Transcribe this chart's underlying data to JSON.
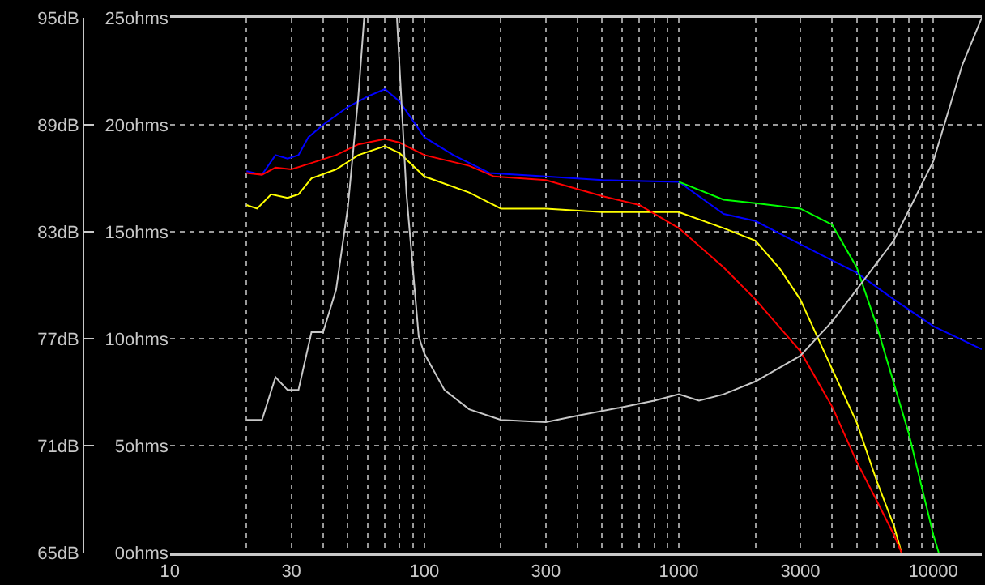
{
  "chart_data": {
    "type": "line",
    "log": "x",
    "grid": true,
    "marker": "none",
    "line_style": "solid",
    "xlim": [
      10,
      15500
    ],
    "xticks": [
      10,
      {
        "value": 20,
        "label": null
      },
      30,
      {
        "value": 40,
        "label": null
      },
      {
        "value": 50,
        "label": null
      },
      {
        "value": 60,
        "label": null
      },
      {
        "value": 70,
        "label": null
      },
      {
        "value": 80,
        "label": null
      },
      {
        "value": 90,
        "label": null
      },
      100,
      {
        "value": 200,
        "label": null
      },
      300,
      {
        "value": 400,
        "label": null
      },
      {
        "value": 500,
        "label": null
      },
      {
        "value": 600,
        "label": null
      },
      {
        "value": 700,
        "label": null
      },
      {
        "value": 800,
        "label": null
      },
      {
        "value": 900,
        "label": null
      },
      1000,
      {
        "value": 2000,
        "label": null
      },
      3000,
      {
        "value": 4000,
        "label": null
      },
      {
        "value": 5000,
        "label": null
      },
      {
        "value": 6000,
        "label": null
      },
      {
        "value": 7000,
        "label": null
      },
      {
        "value": 8000,
        "label": null
      },
      {
        "value": 9000,
        "label": null
      },
      10000
    ],
    "ylim": [
      65,
      95
    ],
    "yticks": [
      {
        "value": 65,
        "label": "65dB"
      },
      {
        "value": 71,
        "label": "71dB"
      },
      {
        "value": 77,
        "label": "77dB"
      },
      {
        "value": 83,
        "label": "83dB"
      },
      {
        "value": 89,
        "label": "89dB"
      },
      {
        "value": 95,
        "label": "95dB"
      }
    ],
    "y2lim": [
      0,
      25
    ],
    "y2ticks": [
      {
        "value": 0,
        "label": "0ohms"
      },
      {
        "value": 5,
        "label": "5ohms"
      },
      {
        "value": 10,
        "label": "10ohms"
      },
      {
        "value": 15,
        "label": "15ohms"
      },
      {
        "value": 20,
        "label": "20ohms"
      },
      {
        "value": 25,
        "label": "25ohms"
      }
    ],
    "series": [
      {
        "color": "#c8c8c8",
        "axis": "y2",
        "x": [
          20,
          23,
          26,
          29,
          32,
          36,
          40,
          45,
          50,
          55,
          58,
          68,
          78,
          85,
          95,
          100,
          120,
          150,
          200,
          300,
          400,
          600,
          800,
          1000,
          1200,
          1500,
          2000,
          3000,
          4000,
          5000,
          7000,
          10000,
          13000,
          15500
        ],
        "values": [
          6.2,
          6.2,
          8.2,
          7.6,
          7.6,
          10.3,
          10.3,
          12.3,
          16.1,
          21.3,
          25,
          null,
          25,
          16.8,
          10.1,
          9.3,
          7.6,
          6.7,
          6.2,
          6.1,
          6.4,
          6.8,
          7.1,
          7.4,
          7.1,
          7.4,
          8.0,
          9.2,
          10.8,
          12.3,
          14.6,
          18.3,
          22.8,
          25
        ]
      },
      {
        "color": "#0000ff",
        "x": [
          20,
          23,
          26,
          29,
          32,
          35,
          40,
          50,
          60,
          70,
          80,
          100,
          130,
          180,
          300,
          500,
          1000,
          1500,
          2000,
          3000,
          5000,
          7000,
          10000,
          15500
        ],
        "values": [
          86.4,
          86.2,
          87.3,
          87.1,
          87.3,
          88.3,
          89.0,
          90.0,
          90.6,
          91.0,
          90.3,
          88.3,
          87.3,
          86.3,
          86.1,
          85.9,
          85.8,
          84.0,
          83.6,
          82.3,
          80.7,
          79.2,
          77.7,
          76.4
        ]
      },
      {
        "color": "#00ff00",
        "x": [
          1000,
          1500,
          2000,
          3000,
          4000,
          5000,
          6000,
          8000,
          10000,
          10500
        ],
        "values": [
          85.8,
          84.8,
          84.6,
          84.3,
          83.4,
          81.0,
          77.7,
          71.7,
          66.0,
          65.0
        ]
      },
      {
        "color": "#ffff00",
        "x": [
          20,
          22,
          25,
          29,
          32,
          36,
          45,
          55,
          70,
          80,
          100,
          150,
          200,
          300,
          500,
          1000,
          1500,
          2000,
          2500,
          3000,
          4000,
          5000,
          6000,
          7000,
          7500
        ],
        "values": [
          84.5,
          84.3,
          85.1,
          84.9,
          85.1,
          86.0,
          86.5,
          87.3,
          87.8,
          87.4,
          86.1,
          85.2,
          84.3,
          84.3,
          84.1,
          84.1,
          83.2,
          82.5,
          80.9,
          79.2,
          75.3,
          72.3,
          69.0,
          66.5,
          65.0
        ]
      },
      {
        "color": "#ff0000",
        "x": [
          20,
          23,
          26,
          30,
          35,
          45,
          55,
          70,
          80,
          100,
          150,
          188,
          300,
          500,
          700,
          1000,
          1500,
          2000,
          3000,
          4000,
          5000,
          6000,
          7000,
          7500
        ],
        "values": [
          86.3,
          86.2,
          86.6,
          86.5,
          86.8,
          87.3,
          87.9,
          88.2,
          88.0,
          87.3,
          86.7,
          86.1,
          85.9,
          85.0,
          84.5,
          83.2,
          81.0,
          79.2,
          76.3,
          73.2,
          70.1,
          67.9,
          66.0,
          65.0
        ]
      }
    ]
  }
}
